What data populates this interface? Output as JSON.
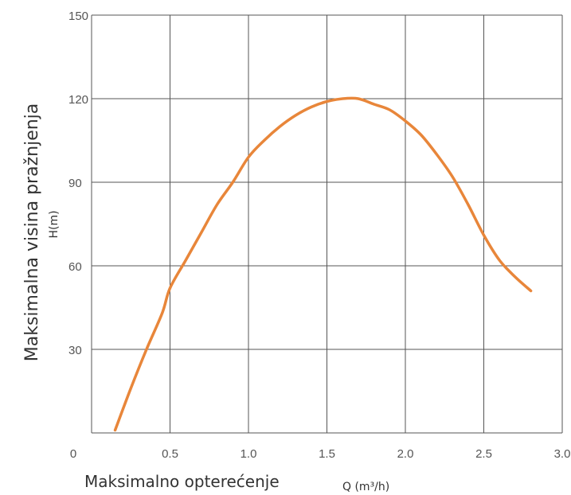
{
  "chart_data": {
    "type": "line",
    "title": "",
    "xlabel_main": "Maksimalno opterećenje",
    "xlabel_unit": "Q (m³/h)",
    "ylabel_main": "Maksimalna visina pražnjenja",
    "ylabel_unit": "H(m)",
    "xlim": [
      0,
      3.0
    ],
    "ylim": [
      0,
      150
    ],
    "xticks": [
      "0",
      "0.5",
      "1.0",
      "1.5",
      "2.0",
      "2.5",
      "3.0"
    ],
    "yticks": [
      "30",
      "60",
      "90",
      "120",
      "150"
    ],
    "grid": true,
    "line_color": "#E8863A",
    "grid_color": "#555555",
    "series": [
      {
        "x": [
          0.15,
          0.25,
          0.35,
          0.45,
          0.5,
          0.6,
          0.7,
          0.8,
          0.9,
          1.0,
          1.1,
          1.2,
          1.3,
          1.4,
          1.5,
          1.6,
          1.7,
          1.8,
          1.9,
          2.0,
          2.1,
          2.2,
          2.3,
          2.4,
          2.5,
          2.6,
          2.7,
          2.8
        ],
        "y": [
          1,
          16,
          30,
          43,
          52,
          62,
          72,
          82,
          90,
          99,
          105,
          110,
          114,
          117,
          119,
          120,
          120,
          118,
          116,
          112,
          107,
          100,
          92,
          82,
          71,
          62,
          56,
          51
        ]
      }
    ]
  }
}
